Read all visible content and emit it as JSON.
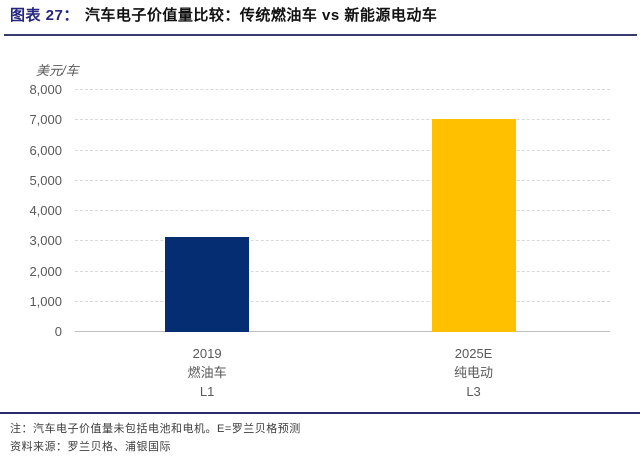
{
  "figure": {
    "label": "图表 27：",
    "title": "汽车电子价值量比较：传统燃油车 vs 新能源电动车"
  },
  "chart_data": {
    "type": "bar",
    "title": "汽车电子价值量比较：传统燃油车 vs 新能源电动车",
    "unit_label": "美元/车",
    "xlabel": "",
    "ylabel": "美元/车",
    "ylim": [
      0,
      8000
    ],
    "grid": "horizontal dashed gridlines, solid baseline, no legend",
    "yticks": [
      {
        "value": 8000,
        "label": "8,000"
      },
      {
        "value": 7000,
        "label": "7,000"
      },
      {
        "value": 6000,
        "label": "6,000"
      },
      {
        "value": 5000,
        "label": "5,000"
      },
      {
        "value": 4000,
        "label": "4,000"
      },
      {
        "value": 3000,
        "label": "3,000"
      },
      {
        "value": 2000,
        "label": "2,000"
      },
      {
        "value": 1000,
        "label": "1,000"
      },
      {
        "value": 0,
        "label": "0"
      }
    ],
    "categories": [
      [
        "2019",
        "燃油车",
        "L1"
      ],
      [
        "2025E",
        "纯电动",
        "L3"
      ]
    ],
    "values": [
      3150,
      7050
    ],
    "bar_colors": [
      "#052d72",
      "#ffc000"
    ],
    "bar_centers_pct": [
      24.7,
      74.5
    ]
  },
  "footnotes": {
    "note": "注：汽车电子价值量未包括电池和电机。E=罗兰贝格预测",
    "source": "资料来源：罗兰贝格、浦银国际"
  },
  "colors": {
    "title_label": "#26267f",
    "title_text": "#111111",
    "rule_navy": "#2a2a6b",
    "axis_text": "#595959",
    "gridline": "#d9d9d9",
    "bar_fuel": "#052d72",
    "bar_ev": "#ffc000"
  }
}
